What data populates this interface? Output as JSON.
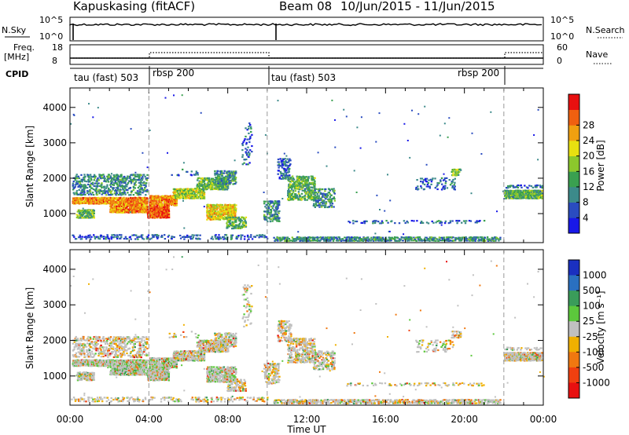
{
  "header": {
    "station": "Kapuskasing (fitACF)",
    "beam": "Beam 08",
    "dates": "10/Jun/2015 - 11/Jun/2015"
  },
  "top_panels": {
    "nsky_label": "N.Sky",
    "nsearch_label": "N.Search",
    "nsky_ticks": [
      "10^5",
      "10^0"
    ],
    "nsearch_ticks": [
      "10^5",
      "10^0"
    ],
    "freq_label": "Freq.",
    "freq_unit": "[MHz]",
    "freq_ticks": [
      "18",
      "8"
    ],
    "nave_label": "Nave",
    "nave_ticks": [
      "60",
      "0"
    ],
    "cpid_label": "CPID",
    "cpid_segments": [
      {
        "start": 0,
        "end": 4,
        "label": "tau (fast) 503"
      },
      {
        "start": 4,
        "end": 10,
        "label": "rbsp 200"
      },
      {
        "start": 10,
        "end": 22,
        "label": "tau (fast) 503"
      },
      {
        "start": 22,
        "end": 24,
        "label": "rbsp 200"
      }
    ]
  },
  "chart_data": [
    {
      "type": "heatmap",
      "name": "power-panel",
      "ylabel": "Slant Range [km]",
      "xlim": [
        0,
        24
      ],
      "ylim": [
        180,
        4550
      ],
      "yticks": [
        1000,
        2000,
        3000,
        4000
      ],
      "colorbar": {
        "label": "Power [dB]",
        "ticks": [
          "4",
          "8",
          "12",
          "16",
          "20",
          "24",
          "28"
        ],
        "colors": [
          "#1818e8",
          "#2a4cc0",
          "#3c8a8a",
          "#3aa050",
          "#8cc82c",
          "#e8e010",
          "#f0a010",
          "#f06010",
          "#e81010"
        ]
      }
    },
    {
      "type": "heatmap",
      "name": "velocity-panel",
      "ylabel": "Slant Range [km]",
      "xlabel": "Time UT",
      "xlim": [
        0,
        24
      ],
      "ylim": [
        180,
        4550
      ],
      "yticks": [
        1000,
        2000,
        3000,
        4000
      ],
      "xticks": [
        "00:00",
        "04:00",
        "08:00",
        "12:00",
        "16:00",
        "20:00",
        "00:00"
      ],
      "colorbar": {
        "label": "Velocity [m s⁻¹]",
        "ticks": [
          "1000",
          "500",
          "100",
          "25",
          "-25",
          "-100",
          "-500",
          "-1000"
        ],
        "colors": [
          "#1a30c0",
          "#2a70c0",
          "#3a9c5a",
          "#5cc83c",
          "#c0c0c0",
          "#f0b000",
          "#f07810",
          "#f04010",
          "#e81010"
        ]
      }
    }
  ]
}
